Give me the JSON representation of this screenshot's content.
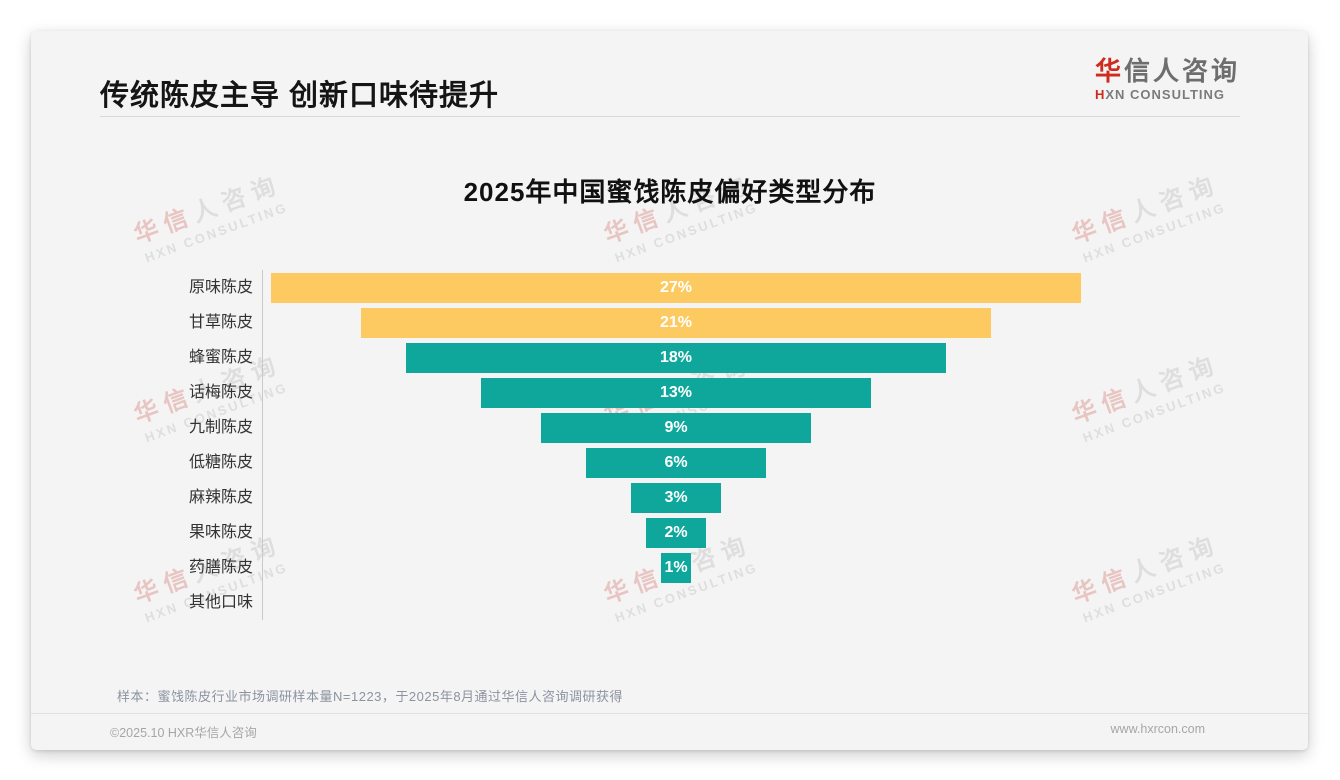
{
  "page": {
    "title": "传统陈皮主导 创新口味待提升",
    "note": "样本：蜜饯陈皮行业市场调研样本量N=1223，于2025年8月通过华信人咨询调研获得",
    "footer_left": "©2025.10 HXR华信人咨询",
    "footer_right": "www.hxrcon.com"
  },
  "brand": {
    "logo_cn_accent": "华",
    "logo_cn_rest": "信人咨询",
    "logo_en_accent": "H",
    "logo_en_rest": "XN CONSULTING",
    "accent_color": "#cf2a1e"
  },
  "watermark": {
    "line1_accent": "华信",
    "line1_rest": "人咨询",
    "line2": "HXN CONSULTING"
  },
  "chart_data": {
    "type": "bar",
    "variant": "horizontal-centered-funnel",
    "title": "2025年中国蜜饯陈皮偏好类型分布",
    "categories": [
      "原味陈皮",
      "甘草陈皮",
      "蜂蜜陈皮",
      "话梅陈皮",
      "九制陈皮",
      "低糖陈皮",
      "麻辣陈皮",
      "果味陈皮",
      "药膳陈皮",
      "其他口味"
    ],
    "values": [
      27,
      21,
      18,
      13,
      9,
      6,
      3,
      2,
      1,
      0
    ],
    "value_labels": [
      "27%",
      "21%",
      "18%",
      "13%",
      "9%",
      "6%",
      "3%",
      "2%",
      "1%",
      ""
    ],
    "bar_colors": [
      "#fdca61",
      "#fdca61",
      "#0fa69c",
      "#0fa69c",
      "#0fa69c",
      "#0fa69c",
      "#0fa69c",
      "#0fa69c",
      "#0fa69c",
      "#0fa69c"
    ],
    "unit": "%",
    "xlim": [
      0,
      27
    ],
    "grid": false,
    "legend": false,
    "value_label_position": "inside-center",
    "axis_line_color": "#c9c9c9",
    "background": "#f4f4f4"
  }
}
